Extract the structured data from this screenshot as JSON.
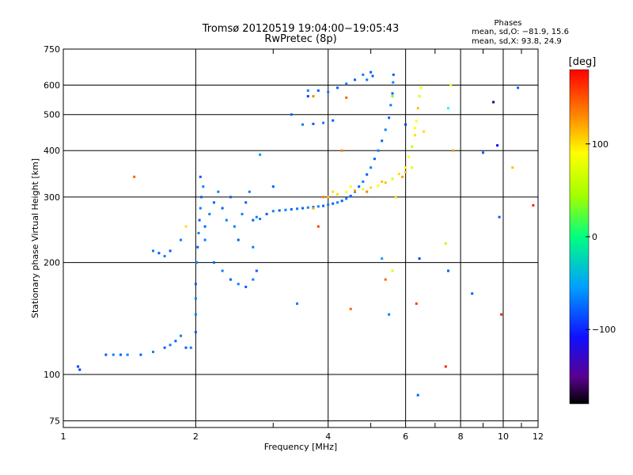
{
  "chart_data": {
    "type": "scatter",
    "title": "Tromsø 20120519 19:04:00−19:05:43",
    "subtitle": "RwPretec (8p)",
    "xlabel": "Frequency [MHz]",
    "ylabel": "Stationary phase Virtual Height [km]",
    "x_scale": "log",
    "y_scale": "log",
    "xlim": [
      1,
      12
    ],
    "ylim": [
      72,
      750
    ],
    "x_ticks": [
      1,
      2,
      4,
      6,
      8,
      10,
      12
    ],
    "x_minor_ticks": [
      3,
      5,
      7,
      9,
      11
    ],
    "y_ticks": [
      75,
      100,
      200,
      300,
      400,
      500,
      600,
      750
    ],
    "grid": true,
    "phase_stats": {
      "heading": "Phases",
      "line1": "mean, sd,O: −81.9, 15.6",
      "line2": "mean, sd,X: 93.8, 24.9"
    },
    "colorbar": {
      "label": "[deg]",
      "range": [
        -180,
        180
      ],
      "ticks": [
        100,
        0,
        -100
      ],
      "tick_labels": [
        "100",
        "0",
        "−100"
      ],
      "colormap": "rainbow"
    },
    "series": [
      {
        "mode": "O",
        "phase_mean": -81.9,
        "points": [
          [
            1.08,
            105,
            -120
          ],
          [
            1.09,
            103,
            -120
          ],
          [
            1.25,
            113,
            -110
          ],
          [
            1.3,
            113,
            -100
          ],
          [
            1.35,
            113,
            -110
          ],
          [
            1.4,
            113,
            -100
          ],
          [
            1.5,
            113,
            -110
          ],
          [
            1.6,
            115,
            -100
          ],
          [
            1.7,
            118,
            -110
          ],
          [
            1.75,
            120,
            -100
          ],
          [
            1.8,
            123,
            -110
          ],
          [
            1.85,
            127,
            -100
          ],
          [
            1.9,
            118,
            -110
          ],
          [
            1.95,
            118,
            -100
          ],
          [
            2.0,
            130,
            -110
          ],
          [
            2.0,
            145,
            -100
          ],
          [
            2.0,
            160,
            -100
          ],
          [
            2.0,
            175,
            -110
          ],
          [
            2.01,
            200,
            -100
          ],
          [
            2.02,
            220,
            -110
          ],
          [
            2.03,
            240,
            -100
          ],
          [
            2.04,
            260,
            -110
          ],
          [
            2.05,
            280,
            -100
          ],
          [
            2.06,
            300,
            -110
          ],
          [
            2.08,
            320,
            -100
          ],
          [
            2.05,
            340,
            -110
          ],
          [
            2.1,
            230,
            -100
          ],
          [
            2.1,
            250,
            -110
          ],
          [
            2.15,
            270,
            -100
          ],
          [
            2.2,
            290,
            -110
          ],
          [
            2.25,
            310,
            -100
          ],
          [
            2.3,
            280,
            -110
          ],
          [
            2.35,
            260,
            -100
          ],
          [
            2.4,
            300,
            -110
          ],
          [
            2.45,
            250,
            -100
          ],
          [
            2.5,
            230,
            -110
          ],
          [
            2.55,
            270,
            -100
          ],
          [
            2.6,
            290,
            -110
          ],
          [
            2.65,
            310,
            -100
          ],
          [
            2.7,
            260,
            -110
          ],
          [
            2.75,
            265,
            -100
          ],
          [
            2.2,
            200,
            -110
          ],
          [
            2.3,
            190,
            -100
          ],
          [
            2.4,
            180,
            -110
          ],
          [
            2.5,
            175,
            -100
          ],
          [
            2.6,
            172,
            -110
          ],
          [
            2.7,
            180,
            -100
          ],
          [
            2.75,
            190,
            -110
          ],
          [
            2.8,
            262,
            -100
          ],
          [
            2.9,
            270,
            -110
          ],
          [
            3.0,
            275,
            -100
          ],
          [
            3.1,
            276,
            -110
          ],
          [
            3.2,
            277,
            -100
          ],
          [
            3.3,
            278,
            -110
          ],
          [
            3.4,
            279,
            -100
          ],
          [
            3.5,
            280,
            -110
          ],
          [
            3.6,
            281,
            -100
          ],
          [
            3.7,
            282,
            -110
          ],
          [
            3.8,
            283,
            -100
          ],
          [
            3.9,
            284,
            -110
          ],
          [
            4.0,
            286,
            -100
          ],
          [
            4.1,
            288,
            -110
          ],
          [
            4.2,
            290,
            -100
          ],
          [
            4.3,
            293,
            -110
          ],
          [
            4.4,
            297,
            -100
          ],
          [
            4.5,
            302,
            -110
          ],
          [
            4.6,
            310,
            -100
          ],
          [
            4.7,
            320,
            -110
          ],
          [
            4.8,
            330,
            -100
          ],
          [
            4.9,
            345,
            -110
          ],
          [
            5.0,
            360,
            -100
          ],
          [
            5.1,
            380,
            -110
          ],
          [
            5.2,
            400,
            -100
          ],
          [
            5.3,
            425,
            -110
          ],
          [
            5.4,
            455,
            -100
          ],
          [
            5.5,
            490,
            -110
          ],
          [
            5.55,
            530,
            -100
          ],
          [
            5.6,
            570,
            -110
          ],
          [
            5.62,
            610,
            -100
          ],
          [
            5.63,
            640,
            -110
          ],
          [
            1.6,
            215,
            -100
          ],
          [
            1.65,
            212,
            -110
          ],
          [
            1.7,
            208,
            -100
          ],
          [
            1.75,
            215,
            -110
          ],
          [
            1.85,
            230,
            -100
          ],
          [
            3.3,
            500,
            -110
          ],
          [
            3.5,
            470,
            -100
          ],
          [
            3.7,
            472,
            -110
          ],
          [
            3.9,
            475,
            -100
          ],
          [
            4.1,
            482,
            -110
          ],
          [
            3.6,
            580,
            -100
          ],
          [
            3.8,
            580,
            -110
          ],
          [
            4.0,
            575,
            -100
          ],
          [
            4.2,
            590,
            -110
          ],
          [
            4.4,
            605,
            -100
          ],
          [
            4.6,
            620,
            -110
          ],
          [
            4.8,
            640,
            -100
          ],
          [
            5.0,
            650,
            -110
          ],
          [
            4.9,
            620,
            -100
          ],
          [
            5.05,
            635,
            -110
          ]
        ]
      },
      {
        "mode": "X",
        "phase_mean": 93.8,
        "points": [
          [
            4.0,
            300,
            120
          ],
          [
            4.2,
            305,
            110
          ],
          [
            4.4,
            310,
            100
          ],
          [
            4.6,
            312,
            130
          ],
          [
            4.8,
            315,
            90
          ],
          [
            5.0,
            318,
            110
          ],
          [
            5.2,
            322,
            100
          ],
          [
            5.4,
            328,
            120
          ],
          [
            5.6,
            336,
            90
          ],
          [
            5.8,
            346,
            110
          ],
          [
            6.0,
            360,
            100
          ],
          [
            6.1,
            385,
            100
          ],
          [
            6.2,
            410,
            80
          ],
          [
            6.3,
            440,
            110
          ],
          [
            6.35,
            480,
            100
          ],
          [
            6.4,
            520,
            120
          ],
          [
            6.45,
            560,
            90
          ],
          [
            6.5,
            590,
            100
          ],
          [
            6.6,
            450,
            110
          ],
          [
            6.3,
            460,
            100
          ],
          [
            3.7,
            280,
            130
          ],
          [
            3.9,
            300,
            140
          ],
          [
            4.1,
            310,
            110
          ],
          [
            4.5,
            320,
            100
          ],
          [
            4.9,
            310,
            140
          ],
          [
            5.3,
            330,
            120
          ],
          [
            5.7,
            300,
            110
          ],
          [
            6.2,
            360,
            90
          ],
          [
            6.0,
            350,
            120
          ],
          [
            5.9,
            340,
            130
          ]
        ]
      },
      {
        "mode": "scattered",
        "points": [
          [
            1.45,
            340,
            150
          ],
          [
            1.9,
            250,
            110
          ],
          [
            2.7,
            220,
            -100
          ],
          [
            2.8,
            390,
            -90
          ],
          [
            3.0,
            320,
            -110
          ],
          [
            3.4,
            155,
            -100
          ],
          [
            3.6,
            560,
            -120
          ],
          [
            3.8,
            250,
            160
          ],
          [
            4.3,
            400,
            140
          ],
          [
            4.5,
            150,
            150
          ],
          [
            5.3,
            205,
            -90
          ],
          [
            5.4,
            180,
            150
          ],
          [
            5.5,
            145,
            -100
          ],
          [
            5.6,
            190,
            90
          ],
          [
            6.35,
            155,
            160
          ],
          [
            6.4,
            88,
            -110
          ],
          [
            6.45,
            205,
            -120
          ],
          [
            7.4,
            105,
            170
          ],
          [
            7.5,
            190,
            -110
          ],
          [
            7.4,
            225,
            80
          ],
          [
            7.6,
            600,
            100
          ],
          [
            7.5,
            520,
            -60
          ],
          [
            7.7,
            400,
            130
          ],
          [
            8.5,
            165,
            -110
          ],
          [
            9.0,
            395,
            -110
          ],
          [
            9.5,
            540,
            -160
          ],
          [
            9.7,
            413,
            -140
          ],
          [
            9.8,
            265,
            -110
          ],
          [
            9.9,
            145,
            170
          ],
          [
            10.5,
            360,
            120
          ],
          [
            10.8,
            590,
            -110
          ],
          [
            11.7,
            285,
            170
          ],
          [
            5.6,
            560,
            60
          ],
          [
            6.0,
            470,
            -120
          ],
          [
            4.4,
            555,
            150
          ],
          [
            3.7,
            560,
            140
          ]
        ]
      }
    ]
  }
}
